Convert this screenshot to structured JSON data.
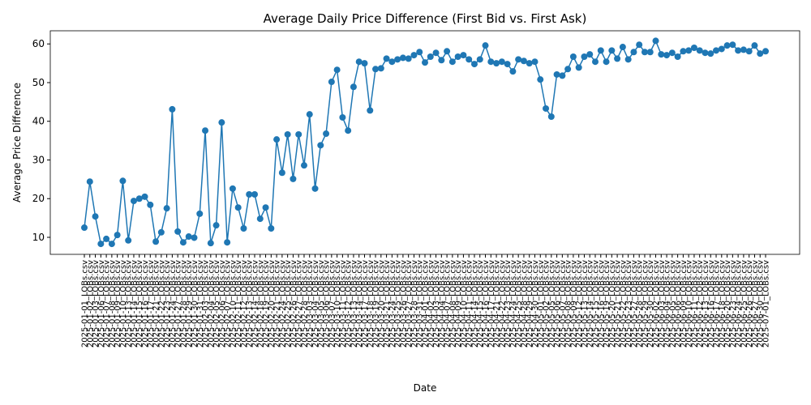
{
  "chart_data": {
    "type": "line",
    "title": "Average Daily Price Difference (First Bid vs. First Ask)",
    "x_label": "Date",
    "y_label": "Average Price Difference",
    "categories": [
      "2025-01-01_LOBs.csv",
      "2025-01-02_LOBs.csv",
      "2025-01-03_LOBs.csv",
      "2025-01-06_LOBs.csv",
      "2025-01-07_LOBs.csv",
      "2025-01-08_LOBs.csv",
      "2025-01-09_LOBs.csv",
      "2025-01-10_LOBs.csv",
      "2025-01-13_LOBs.csv",
      "2025-01-14_LOBs.csv",
      "2025-01-15_LOBs.csv",
      "2025-01-16_LOBs.csv",
      "2025-01-17_LOBs.csv",
      "2025-01-21_LOBs.csv",
      "2025-01-22_LOBs.csv",
      "2025-01-23_LOBs.csv",
      "2025-01-24_LOBs.csv",
      "2025-01-27_LOBs.csv",
      "2025-01-28_LOBs.csv",
      "2025-01-29_LOBs.csv",
      "2025-01-30_LOBs.csv",
      "2025-01-31_LOBs.csv",
      "2025-02-03_LOBs.csv",
      "2025-02-04_LOBs.csv",
      "2025-02-05_LOBs.csv",
      "2025-02-06_LOBs.csv",
      "2025-02-07_LOBs.csv",
      "2025-02-10_LOBs.csv",
      "2025-02-11_LOBs.csv",
      "2025-02-12_LOBs.csv",
      "2025-02-13_LOBs.csv",
      "2025-02-14_LOBs.csv",
      "2025-02-18_LOBs.csv",
      "2025-02-19_LOBs.csv",
      "2025-02-20_LOBs.csv",
      "2025-02-21_LOBs.csv",
      "2025-02-24_LOBs.csv",
      "2025-02-25_LOBs.csv",
      "2025-02-26_LOBs.csv",
      "2025-02-27_LOBs.csv",
      "2025-02-28_LOBs.csv",
      "2025-03-03_LOBs.csv",
      "2025-03-04_LOBs.csv",
      "2025-03-05_LOBs.csv",
      "2025-03-06_LOBs.csv",
      "2025-03-07_LOBs.csv",
      "2025-03-10_LOBs.csv",
      "2025-03-11_LOBs.csv",
      "2025-03-12_LOBs.csv",
      "2025-03-13_LOBs.csv",
      "2025-03-14_LOBs.csv",
      "2025-03-17_LOBs.csv",
      "2025-03-18_LOBs.csv",
      "2025-03-19_LOBs.csv",
      "2025-03-20_LOBs.csv",
      "2025-03-21_LOBs.csv",
      "2025-03-24_LOBs.csv",
      "2025-03-25_LOBs.csv",
      "2025-03-26_LOBs.csv",
      "2025-03-27_LOBs.csv",
      "2025-03-28_LOBs.csv",
      "2025-03-31_LOBs.csv",
      "2025-04-01_LOBs.csv",
      "2025-04-02_LOBs.csv",
      "2025-04-03_LOBs.csv",
      "2025-04-04_LOBs.csv",
      "2025-04-07_LOBs.csv",
      "2025-04-08_LOBs.csv",
      "2025-04-09_LOBs.csv",
      "2025-04-10_LOBs.csv",
      "2025-04-11_LOBs.csv",
      "2025-04-14_LOBs.csv",
      "2025-04-15_LOBs.csv",
      "2025-04-16_LOBs.csv",
      "2025-04-17_LOBs.csv",
      "2025-04-21_LOBs.csv",
      "2025-04-22_LOBs.csv",
      "2025-04-23_LOBs.csv",
      "2025-04-24_LOBs.csv",
      "2025-04-25_LOBs.csv",
      "2025-04-28_LOBs.csv",
      "2025-04-29_LOBs.csv",
      "2025-04-30_LOBs.csv",
      "2025-05-01_LOBs.csv",
      "2025-05-02_LOBs.csv",
      "2025-05-05_LOBs.csv",
      "2025-05-06_LOBs.csv",
      "2025-05-07_LOBs.csv",
      "2025-05-08_LOBs.csv",
      "2025-05-09_LOBs.csv",
      "2025-05-12_LOBs.csv",
      "2025-05-13_LOBs.csv",
      "2025-05-14_LOBs.csv",
      "2025-05-15_LOBs.csv",
      "2025-05-16_LOBs.csv",
      "2025-05-19_LOBs.csv",
      "2025-05-20_LOBs.csv",
      "2025-05-21_LOBs.csv",
      "2025-05-22_LOBs.csv",
      "2025-05-23_LOBs.csv",
      "2025-05-27_LOBs.csv",
      "2025-05-28_LOBs.csv",
      "2025-05-29_LOBs.csv",
      "2025-05-30_LOBs.csv",
      "2025-06-02_LOBs.csv",
      "2025-06-03_LOBs.csv",
      "2025-06-04_LOBs.csv",
      "2025-06-05_LOBs.csv",
      "2025-06-06_LOBs.csv",
      "2025-06-09_LOBs.csv",
      "2025-06-10_LOBs.csv",
      "2025-06-11_LOBs.csv",
      "2025-06-12_LOBs.csv",
      "2025-06-13_LOBs.csv",
      "2025-06-16_LOBs.csv",
      "2025-06-17_LOBs.csv",
      "2025-06-18_LOBs.csv",
      "2025-06-20_LOBs.csv",
      "2025-06-23_LOBs.csv",
      "2025-06-24_LOBs.csv",
      "2025-06-25_LOBs.csv",
      "2025-06-26_LOBs.csv",
      "2025-06-27_LOBs.csv",
      "2025-06-30_LOBs.csv",
      "2025-07-01_LOBs.csv"
    ],
    "series": [
      {
        "color": "#1f77b4",
        "values": [
          12.5,
          24.4,
          15.4,
          8.3,
          9.6,
          8.3,
          10.6,
          24.6,
          9.2,
          19.4,
          20.0,
          20.5,
          18.4,
          8.9,
          11.3,
          17.5,
          43.1,
          11.5,
          8.7,
          10.2,
          9.9,
          16.1,
          37.6,
          8.5,
          13.1,
          39.7,
          8.7,
          22.6,
          17.7,
          12.3,
          21.1,
          21.1,
          14.8,
          17.7,
          12.3,
          35.3,
          26.7,
          36.6,
          25.1,
          36.6,
          28.6,
          41.8,
          22.6,
          33.8,
          36.8,
          50.2,
          53.3,
          41.0,
          37.6,
          48.9,
          55.4,
          55.0,
          42.8,
          53.5,
          53.7,
          56.2,
          55.4,
          56.0,
          56.4,
          56.2,
          57.1,
          57.9,
          55.2,
          56.7,
          57.7,
          55.8,
          58.1,
          55.4,
          56.7,
          57.1,
          56.0,
          54.8,
          56.0,
          59.6,
          55.4,
          55.0,
          55.4,
          54.8,
          52.9,
          56.0,
          55.6,
          55.0,
          55.4,
          50.8,
          43.3,
          41.2,
          52.1,
          51.8,
          53.5,
          56.7,
          53.9,
          56.7,
          57.3,
          55.4,
          58.3,
          55.4,
          58.3,
          56.2,
          59.2,
          56.0,
          57.9,
          59.8,
          57.9,
          57.9,
          60.8,
          57.3,
          57.1,
          57.7,
          56.7,
          58.1,
          58.3,
          59.0,
          58.3,
          57.7,
          57.5,
          58.3,
          58.7,
          59.6,
          59.8,
          58.3,
          58.5,
          58.1,
          59.6,
          57.5,
          58.1
        ]
      }
    ],
    "ylim": [
      5.6,
      63.4
    ],
    "yticks": [
      10,
      20,
      30,
      40,
      50,
      60
    ],
    "grid": false,
    "markers": true
  }
}
